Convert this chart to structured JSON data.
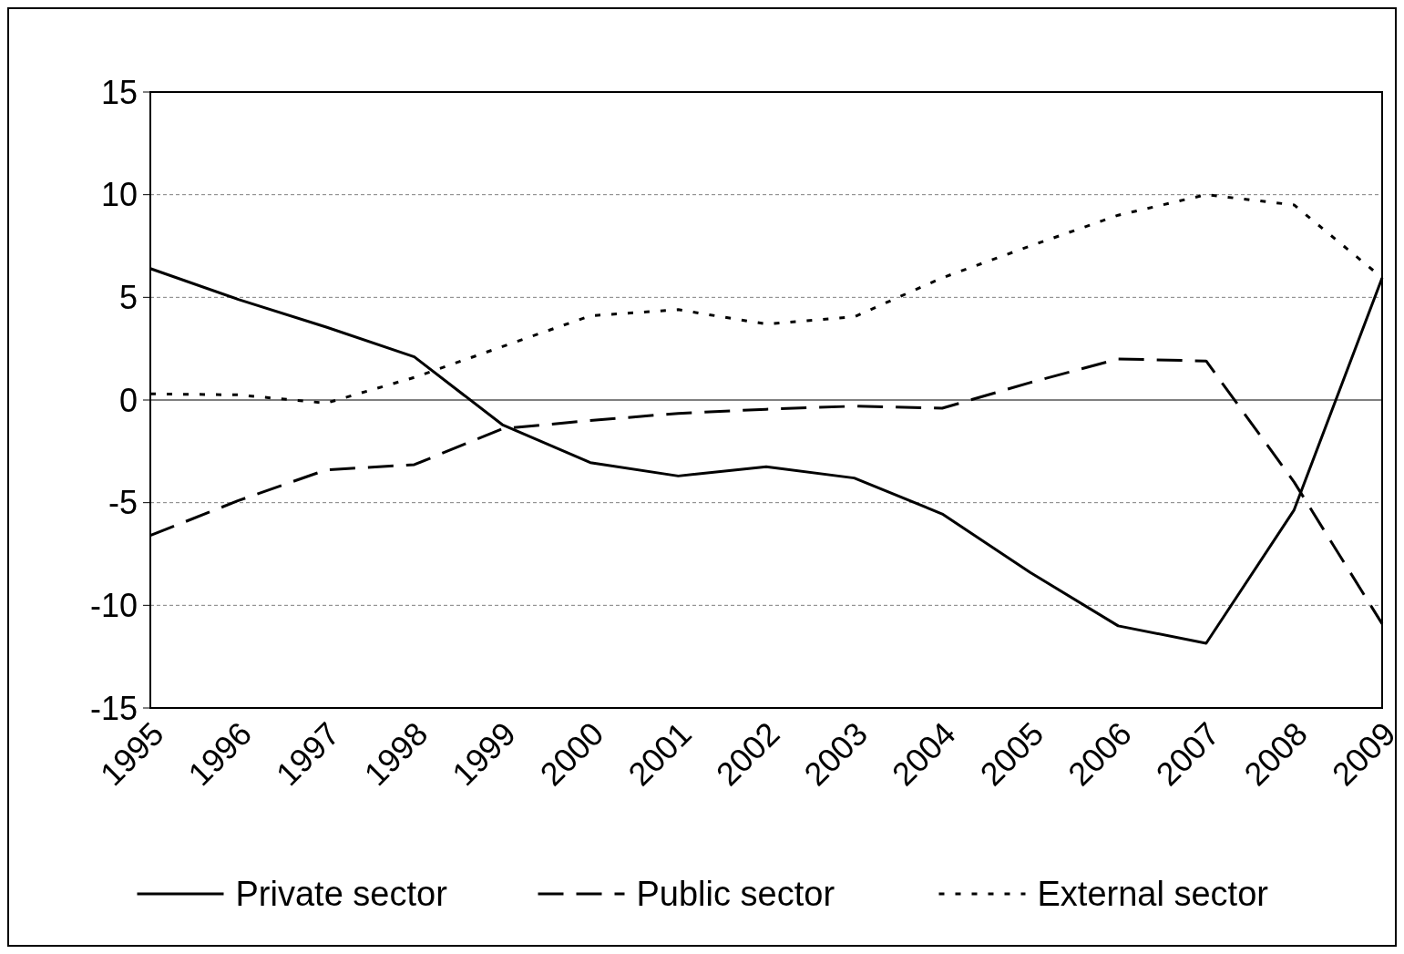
{
  "chart_data": {
    "type": "line",
    "categories": [
      "1995",
      "1996",
      "1997",
      "1998",
      "1999",
      "2000",
      "2001",
      "2002",
      "2003",
      "2004",
      "2005",
      "2006",
      "2007",
      "2008",
      "2009"
    ],
    "series": [
      {
        "name": "Private sector",
        "color": "#000000",
        "line_style": "solid",
        "values": [
          6.4,
          4.9,
          3.55,
          2.1,
          -1.2,
          -3.05,
          -3.7,
          -3.25,
          -3.8,
          -5.55,
          -8.4,
          -11.0,
          -11.85,
          -5.35,
          5.95
        ]
      },
      {
        "name": "Public sector",
        "color": "#000000",
        "line_style": "dashed",
        "values": [
          -6.6,
          -4.9,
          -3.4,
          -3.15,
          -1.4,
          -1.0,
          -0.65,
          -0.45,
          -0.3,
          -0.4,
          0.85,
          2.0,
          1.9,
          -4.0,
          -10.9
        ]
      },
      {
        "name": "External sector",
        "color": "#000000",
        "line_style": "dotted",
        "values": [
          0.3,
          0.25,
          -0.15,
          1.1,
          2.6,
          4.1,
          4.4,
          3.7,
          4.05,
          5.95,
          7.5,
          9.0,
          10.0,
          9.5,
          5.95
        ]
      }
    ],
    "ylim": [
      -15,
      15
    ],
    "yticks": [
      -15,
      -10,
      -5,
      0,
      5,
      10,
      15
    ],
    "grid": "y",
    "legend": "bottom",
    "marker": "none"
  }
}
